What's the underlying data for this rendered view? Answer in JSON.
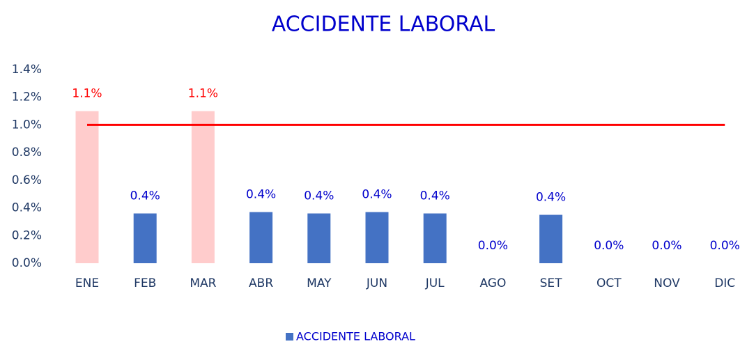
{
  "chart_data": {
    "type": "bar",
    "title": "ACCIDENTE LABORAL",
    "categories": [
      "ENE",
      "FEB",
      "MAR",
      "ABR",
      "MAY",
      "JUN",
      "JUL",
      "AGO",
      "SET",
      "OCT",
      "NOV",
      "DIC"
    ],
    "series": [
      {
        "name": "ACCIDENTE LABORAL",
        "color": "#4472c4",
        "values": [
          1.1,
          0.36,
          1.1,
          0.37,
          0.36,
          0.37,
          0.36,
          0,
          0.35,
          0,
          0,
          0
        ],
        "value_labels": [
          "1.1%",
          "0.4%",
          "1.1%",
          "0.4%",
          "0.4%",
          "0.4%",
          "0.4%",
          "0.0%",
          "0.4%",
          "0.0%",
          "0.0%",
          "0.0%"
        ],
        "colors": [
          "#ffcccc",
          "#4472c4",
          "#ffcccc",
          "#4472c4",
          "#4472c4",
          "#4472c4",
          "#4472c4",
          "#4472c4",
          "#4472c4",
          "#4472c4",
          "#4472c4",
          "#4472c4"
        ],
        "label_colors": [
          "#ff0000",
          "#0000cc",
          "#ff0000",
          "#0000cc",
          "#0000cc",
          "#0000cc",
          "#0000cc",
          "#0000cc",
          "#0000cc",
          "#0000cc",
          "#0000cc",
          "#0000cc"
        ]
      }
    ],
    "target_line": {
      "value": 1.0,
      "color": "#ff0000"
    },
    "ylim": [
      0,
      1.4
    ],
    "yticks": [
      {
        "value": 0,
        "label": "0.0%"
      },
      {
        "value": 0.2,
        "label": "0.2%"
      },
      {
        "value": 0.4,
        "label": "0.4%"
      },
      {
        "value": 0.6,
        "label": "0.6%"
      },
      {
        "value": 0.8,
        "label": "0.8%"
      },
      {
        "value": 1.0,
        "label": "1.0%"
      },
      {
        "value": 1.2,
        "label": "1.2%"
      },
      {
        "value": 1.4,
        "label": "1.4%"
      }
    ],
    "grid": false,
    "legend": "bottom"
  }
}
